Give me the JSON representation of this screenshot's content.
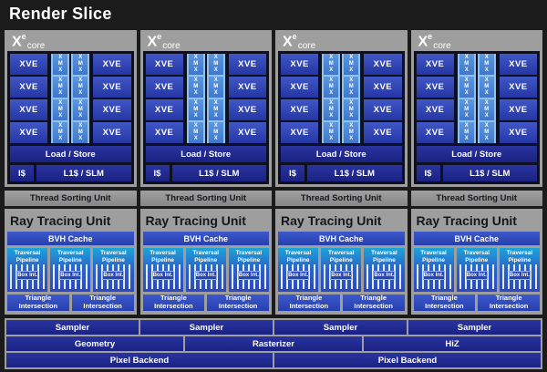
{
  "title": "Render Slice",
  "layout": {
    "core_count": 4
  },
  "colors": {
    "background": "#1b1b1b",
    "block_gray": "#9e9e9e",
    "royal_blue": "#2e46b4",
    "navy_blue": "#1d2688",
    "xmx_blue": "#4a86d6",
    "xmx_strip": "#8fc1ed",
    "teal": "#1aa6d6"
  },
  "xe_core": {
    "logo": {
      "x": "X",
      "sup": "e",
      "suffix": "core"
    },
    "xve_label": "XVE",
    "xmx_letters": [
      "X",
      "M",
      "X"
    ],
    "load_store_label": "Load / Store",
    "icache_label": "I$",
    "l1_slm_label": "L1$ / SLM"
  },
  "thread_sorting_unit_label": "Thread Sorting Unit",
  "ray_tracing_unit": {
    "title": "Ray Tracing Unit",
    "bvh_cache_label": "BVH Cache",
    "traversal_pipeline_label": "Traversal Pipeline",
    "box_int_label": "Box Int.",
    "triangle_intersection_label": "Triangle Intersection"
  },
  "bottom_panel": {
    "samplers": [
      "Sampler",
      "Sampler",
      "Sampler",
      "Sampler"
    ],
    "geometry": "Geometry",
    "rasterizer": "Rasterizer",
    "hiz": "HiZ",
    "pixel_backends": [
      "Pixel Backend",
      "Pixel Backend"
    ]
  }
}
